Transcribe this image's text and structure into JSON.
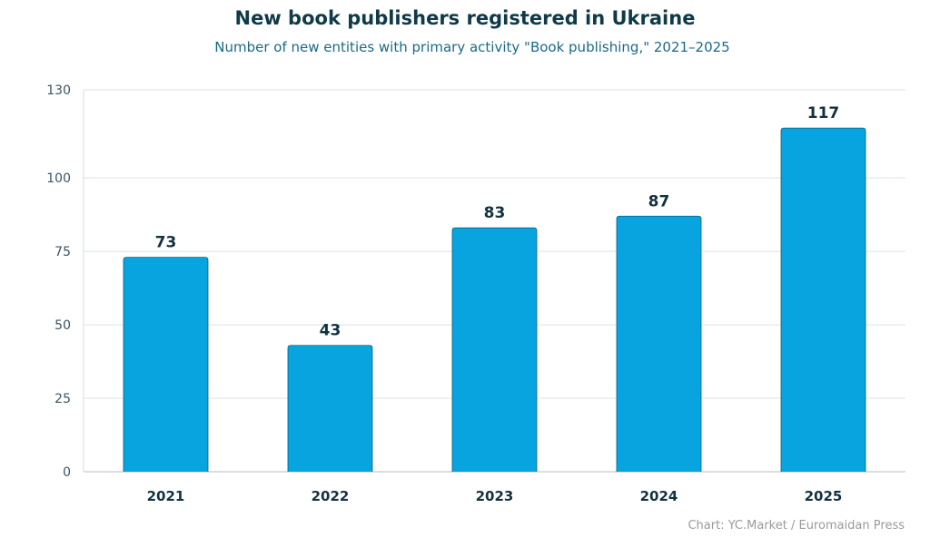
{
  "chart_data": {
    "type": "bar",
    "title": "New book publishers registered in Ukraine",
    "subtitle": "Number of new entities with primary activity \"Book publishing,\" 2021–2025",
    "categories": [
      "2021",
      "2022",
      "2023",
      "2024",
      "2025"
    ],
    "values": [
      73,
      43,
      83,
      87,
      117
    ],
    "yticks": [
      0,
      25,
      50,
      75,
      100,
      130
    ],
    "ylim": [
      0,
      130
    ],
    "grid": true,
    "bar_color": "#07a4e0",
    "bar_border_color": "#0a5f80",
    "source": "Chart: YC.Market / Euromaidan Press"
  }
}
